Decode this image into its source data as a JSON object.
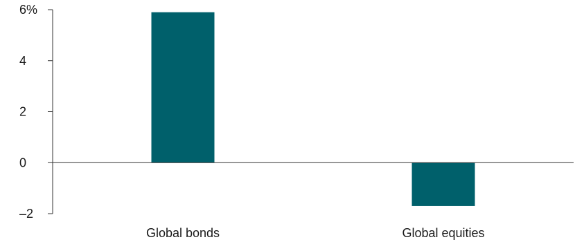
{
  "chart_data": {
    "type": "bar",
    "title": "",
    "xlabel": "",
    "ylabel": "",
    "categories": [
      "Global bonds",
      "Global equities"
    ],
    "values": [
      5.9,
      -1.7
    ],
    "ylim": [
      -2,
      6
    ],
    "yticks": [
      {
        "value": 6,
        "label": "6%"
      },
      {
        "value": 4,
        "label": "4"
      },
      {
        "value": 2,
        "label": "2"
      },
      {
        "value": 0,
        "label": "0"
      },
      {
        "value": -2,
        "label": "–2"
      }
    ],
    "grid": false,
    "legend": "none",
    "bar_color": "#00606B",
    "axis_color": "#333333"
  }
}
